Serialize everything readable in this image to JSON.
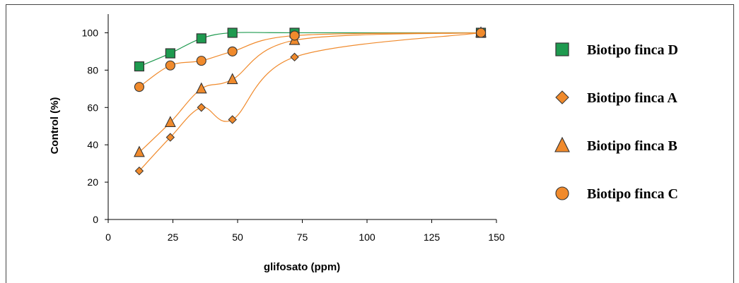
{
  "chart_data": {
    "type": "line",
    "title": "",
    "xlabel": "glifosato (ppm)",
    "ylabel": "Control (%)",
    "xlim": [
      0,
      150
    ],
    "ylim": [
      0,
      110
    ],
    "xticks": [
      0,
      25,
      50,
      75,
      100,
      125,
      150
    ],
    "yticks": [
      0,
      20,
      40,
      60,
      80,
      100
    ],
    "grid": false,
    "legend_position": "right",
    "series": [
      {
        "name": "Biotipo finca D",
        "marker": "square",
        "color": "#1e9a4f",
        "line_color": "#1e9a4f",
        "x": [
          12,
          24,
          36,
          48,
          72,
          144
        ],
        "y": [
          82,
          89,
          97,
          100,
          100,
          100
        ]
      },
      {
        "name": "Biotipo finca A",
        "marker": "diamond",
        "color": "#f08a2c",
        "line_color": "#f08a2c",
        "x": [
          12,
          24,
          36,
          48,
          72,
          144
        ],
        "y": [
          26,
          44,
          60,
          53.5,
          87,
          100
        ]
      },
      {
        "name": "Biotipo finca B",
        "marker": "triangle",
        "color": "#f08a2c",
        "line_color": "#f08a2c",
        "x": [
          12,
          24,
          36,
          48,
          72,
          144
        ],
        "y": [
          36,
          52,
          70,
          75,
          96,
          100
        ]
      },
      {
        "name": "Biotipo finca C",
        "marker": "circle",
        "color": "#f08a2c",
        "line_color": "#f08a2c",
        "x": [
          12,
          24,
          36,
          48,
          72,
          144
        ],
        "y": [
          71,
          82.5,
          85,
          90,
          98.5,
          100
        ]
      }
    ]
  }
}
